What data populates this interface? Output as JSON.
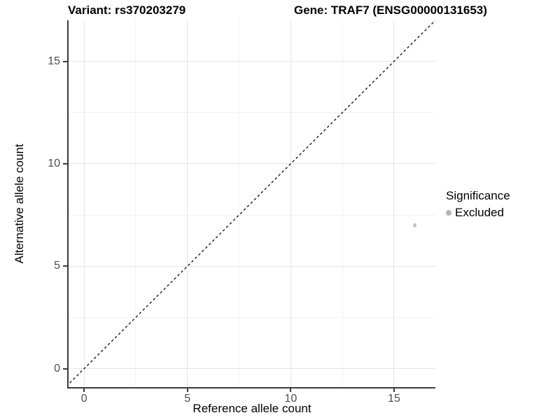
{
  "titles": {
    "variant": "Variant: rs370203279",
    "gene": "Gene: TRAF7 (ENSG00000131653)"
  },
  "chart_data": {
    "type": "scatter",
    "title": "Variant: rs370203279  |  Gene: TRAF7 (ENSG00000131653)",
    "xlabel": "Reference allele count",
    "ylabel": "Alternative allele count",
    "xlim": [
      -0.75,
      17
    ],
    "ylim": [
      -0.9,
      17
    ],
    "x_ticks": [
      0,
      5,
      10,
      15
    ],
    "y_ticks": [
      0,
      5,
      10,
      15
    ],
    "x_minor_ticks": [
      2.5,
      7.5,
      12.5
    ],
    "y_minor_ticks": [
      2.5,
      7.5,
      12.5
    ],
    "grid": true,
    "legend_position": "right",
    "points": [
      {
        "x": 16,
        "y": 7,
        "significance": "Excluded",
        "color": "#c6c6c6"
      }
    ],
    "reference_line": {
      "type": "identity",
      "slope": 1,
      "intercept": 0,
      "style": "dashed",
      "color": "#1a1a1a"
    },
    "legend": {
      "title": "Significance",
      "entries": [
        {
          "label": "Excluded",
          "marker": "circle",
          "color": "#b5b5b5"
        }
      ]
    }
  },
  "colors": {
    "background": "#ffffff",
    "grid_major": "#e5e5e5",
    "grid_minor": "#f2f2f2",
    "axis_line": "#3b3b3b",
    "tick_text": "#4d4d4d",
    "title_text": "#000000"
  }
}
